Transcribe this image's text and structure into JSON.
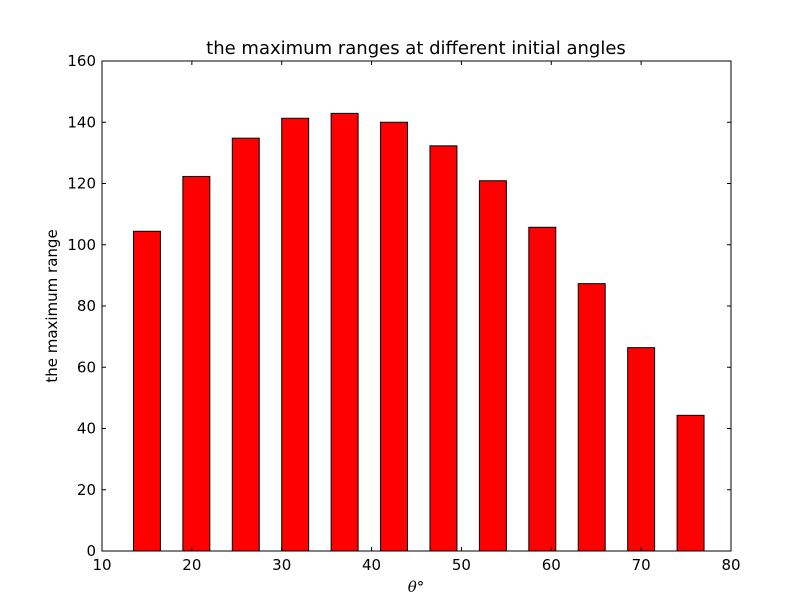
{
  "chart_data": {
    "type": "bar",
    "title": "the maximum ranges at different initial angles",
    "xlabel": "θ°",
    "ylabel": "the maximum range",
    "xlim": [
      10,
      80
    ],
    "ylim": [
      0,
      160
    ],
    "xticks": [
      "10",
      "20",
      "30",
      "40",
      "50",
      "60",
      "70",
      "80"
    ],
    "yticks": [
      "0",
      "20",
      "40",
      "60",
      "80",
      "100",
      "120",
      "140",
      "160"
    ],
    "bar_color": "#ff0000",
    "edge_color": "#000000",
    "bar_width": 3,
    "bars": [
      {
        "x": 15,
        "value": 104.4
      },
      {
        "x": 20.5,
        "value": 122.3
      },
      {
        "x": 26,
        "value": 134.8
      },
      {
        "x": 31.5,
        "value": 141.3
      },
      {
        "x": 37,
        "value": 142.9
      },
      {
        "x": 42.5,
        "value": 140.0
      },
      {
        "x": 48,
        "value": 132.3
      },
      {
        "x": 53.5,
        "value": 120.9
      },
      {
        "x": 59,
        "value": 105.7
      },
      {
        "x": 64.5,
        "value": 87.3
      },
      {
        "x": 70,
        "value": 66.4
      },
      {
        "x": 75.5,
        "value": 44.3
      }
    ],
    "grid": false,
    "legend": null
  }
}
